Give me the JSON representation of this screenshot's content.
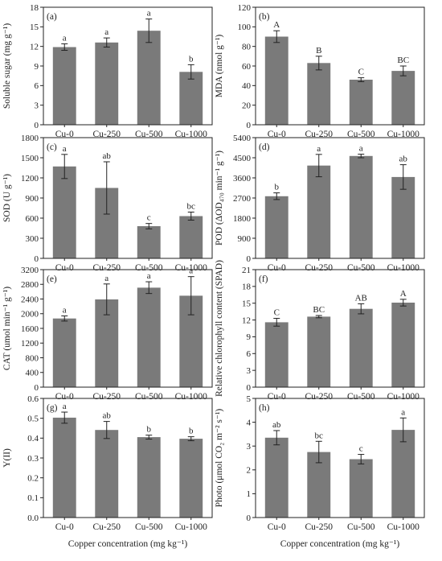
{
  "chart_data": [
    {
      "type": "bar",
      "panel_label": "(a)",
      "ylabel": "Soluble sugar (mg g⁻¹)",
      "categories": [
        "Cu-0",
        "Cu-250",
        "Cu-500",
        "Cu-1000"
      ],
      "values": [
        11.9,
        12.6,
        14.4,
        8.1
      ],
      "errors": [
        0.5,
        0.7,
        1.8,
        1.1
      ],
      "letters": [
        "a",
        "a",
        "a",
        "b"
      ],
      "ylim": [
        0,
        18
      ],
      "yticks": [
        "0",
        "3",
        "6",
        "9",
        "12",
        "15",
        "18"
      ]
    },
    {
      "type": "bar",
      "panel_label": "(b)",
      "ylabel": "MDA (nmol g⁻¹)",
      "categories": [
        "Cu-0",
        "Cu-250",
        "Cu-500",
        "Cu-1000"
      ],
      "values": [
        90,
        63,
        46,
        55
      ],
      "errors": [
        6,
        7,
        2,
        5
      ],
      "letters": [
        "A",
        "B",
        "C",
        "BC"
      ],
      "ylim": [
        0,
        120
      ],
      "yticks": [
        "0",
        "20",
        "40",
        "60",
        "80",
        "100",
        "120"
      ]
    },
    {
      "type": "bar",
      "panel_label": "(c)",
      "ylabel": "SOD (U g⁻¹)",
      "categories": [
        "Cu-0",
        "Cu-250",
        "Cu-500",
        "Cu-1000"
      ],
      "values": [
        1370,
        1050,
        480,
        630
      ],
      "errors": [
        180,
        390,
        40,
        60
      ],
      "letters": [
        "a",
        "ab",
        "c",
        "bc"
      ],
      "ylim": [
        0,
        1800
      ],
      "yticks": [
        "0",
        "300",
        "600",
        "900",
        "1200",
        "1500",
        "1800"
      ]
    },
    {
      "type": "bar",
      "panel_label": "(d)",
      "ylabel": "POD (ΔOD₄₇₀ min⁻¹ g⁻¹)",
      "categories": [
        "Cu-0",
        "Cu-250",
        "Cu-500",
        "Cu-1000"
      ],
      "values": [
        2780,
        4150,
        4580,
        3640
      ],
      "errors": [
        150,
        500,
        80,
        550
      ],
      "letters": [
        "b",
        "a",
        "a",
        "ab"
      ],
      "ylim": [
        0,
        5400
      ],
      "yticks": [
        "0",
        "900",
        "1800",
        "2700",
        "3600",
        "4500",
        "5400"
      ]
    },
    {
      "type": "bar",
      "panel_label": "(e)",
      "ylabel": "CAT (umol min⁻¹ g⁻¹)",
      "categories": [
        "Cu-0",
        "Cu-250",
        "Cu-500",
        "Cu-1000"
      ],
      "values": [
        1870,
        2390,
        2710,
        2490
      ],
      "errors": [
        70,
        420,
        160,
        520
      ],
      "letters": [
        "a",
        "a",
        "a",
        "a"
      ],
      "ylim": [
        0,
        3200
      ],
      "yticks": [
        "0",
        "400",
        "800",
        "1200",
        "1600",
        "2000",
        "2400",
        "2800",
        "3200"
      ]
    },
    {
      "type": "bar",
      "panel_label": "(f)",
      "ylabel": "Relative chlorophyll content (SPAD)",
      "categories": [
        "Cu-0",
        "Cu-250",
        "Cu-500",
        "Cu-1000"
      ],
      "values": [
        11.6,
        12.6,
        14.0,
        15.1
      ],
      "errors": [
        0.7,
        0.2,
        0.9,
        0.6
      ],
      "letters": [
        "C",
        "BC",
        "AB",
        "A"
      ],
      "ylim": [
        0,
        21
      ],
      "yticks": [
        "0",
        "3",
        "6",
        "9",
        "12",
        "15",
        "18",
        "21"
      ]
    },
    {
      "type": "bar",
      "panel_label": "(g)",
      "ylabel": "Y(II)",
      "categories": [
        "Cu-0",
        "Cu-250",
        "Cu-500",
        "Cu-1000"
      ],
      "values": [
        0.503,
        0.441,
        0.405,
        0.397
      ],
      "errors": [
        0.028,
        0.043,
        0.01,
        0.01
      ],
      "letters": [
        "a",
        "ab",
        "b",
        "b"
      ],
      "ylim": [
        0,
        0.6
      ],
      "yticks": [
        "0.0",
        "0.1",
        "0.2",
        "0.3",
        "0.4",
        "0.5",
        "0.6"
      ],
      "xlabel": "Copper concentration (mg kg⁻¹)"
    },
    {
      "type": "bar",
      "panel_label": "(h)",
      "ylabel": "Photo (μmol CO₂ m⁻² s⁻¹)",
      "categories": [
        "Cu-0",
        "Cu-250",
        "Cu-500",
        "Cu-1000"
      ],
      "values": [
        3.35,
        2.75,
        2.45,
        3.68
      ],
      "errors": [
        0.3,
        0.45,
        0.2,
        0.5
      ],
      "letters": [
        "ab",
        "bc",
        "c",
        "a"
      ],
      "ylim": [
        0,
        5
      ],
      "yticks": [
        "0",
        "1",
        "2",
        "3",
        "4",
        "5"
      ],
      "xlabel": "Copper concentration (mg kg⁻¹)"
    }
  ]
}
